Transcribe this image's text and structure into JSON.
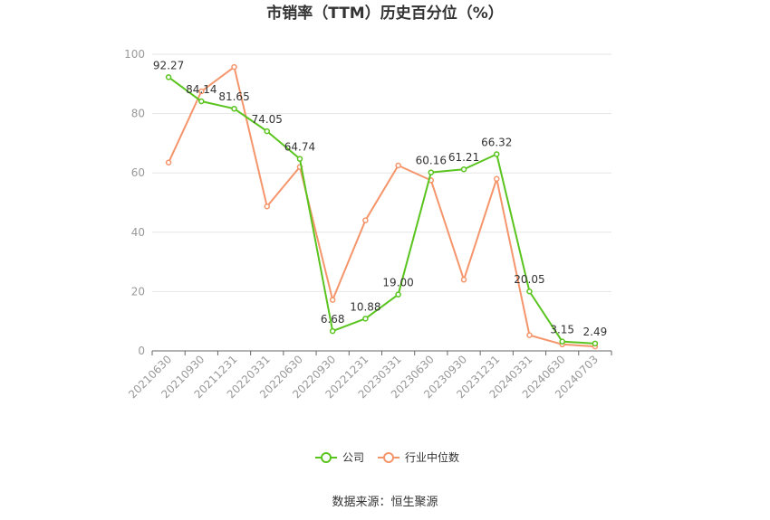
{
  "chart_data": {
    "type": "line",
    "title": "市销率（TTM）历史百分位（%）",
    "xlabel": "",
    "ylabel": "",
    "ylim": [
      0,
      100
    ],
    "yticks": [
      0,
      20,
      40,
      60,
      80,
      100
    ],
    "grid": true,
    "legend_position": "bottom",
    "categories": [
      "20210630",
      "20210930",
      "20211231",
      "20220331",
      "20220630",
      "20220930",
      "20221231",
      "20230331",
      "20230630",
      "20230930",
      "20231231",
      "20240331",
      "20240630",
      "20240703"
    ],
    "series": [
      {
        "name": "公司",
        "color": "#5ac41f",
        "values": [
          92.27,
          84.14,
          81.65,
          74.05,
          64.74,
          6.68,
          10.88,
          19.0,
          60.16,
          61.21,
          66.32,
          20.05,
          3.15,
          2.49
        ],
        "labels": [
          "92.27",
          "84.14",
          "81.65",
          "74.05",
          "64.74",
          "6.68",
          "10.88",
          "19.00",
          "60.16",
          "61.21",
          "66.32",
          "20.05",
          "3.15",
          "2.49"
        ]
      },
      {
        "name": "行业中位数",
        "color": "#f5956b",
        "values": [
          63.5,
          87.5,
          95.7,
          48.7,
          62.0,
          17.2,
          44.0,
          62.5,
          57.5,
          24.0,
          58.0,
          5.3,
          2.2,
          1.5
        ]
      }
    ]
  },
  "source": "数据来源：恒生聚源"
}
